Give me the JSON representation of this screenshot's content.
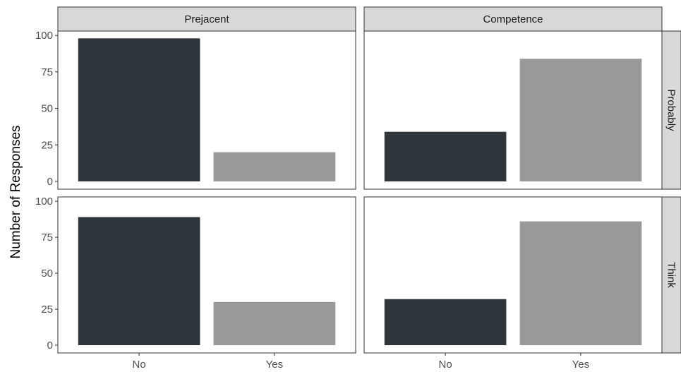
{
  "chart_data": {
    "type": "bar",
    "layout": "facet_grid",
    "columns": [
      "Prejacent",
      "Competence"
    ],
    "rows": [
      "Probably",
      "Think"
    ],
    "categories": [
      "No",
      "Yes"
    ],
    "ylabel": "Number of Responses",
    "xlabel": "",
    "ylim": [
      0,
      103
    ],
    "yticks": [
      0,
      25,
      50,
      75,
      100
    ],
    "grid": false,
    "colors": {
      "No": "#2e353b",
      "Yes": "#999999"
    },
    "panels": [
      {
        "row": "Probably",
        "column": "Prejacent",
        "values": [
          98,
          20
        ]
      },
      {
        "row": "Probably",
        "column": "Competence",
        "values": [
          34,
          84
        ]
      },
      {
        "row": "Think",
        "column": "Prejacent",
        "values": [
          89,
          30
        ]
      },
      {
        "row": "Think",
        "column": "Competence",
        "values": [
          32,
          86
        ]
      }
    ]
  }
}
